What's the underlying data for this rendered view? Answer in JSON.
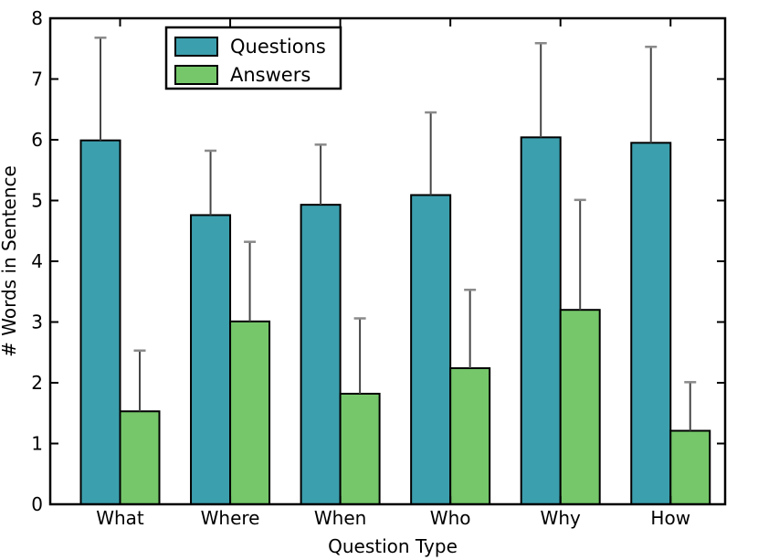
{
  "chart_data": {
    "type": "bar",
    "title": "",
    "xlabel": "Question Type",
    "ylabel": "# Words in Sentence",
    "categories": [
      "What",
      "Where",
      "When",
      "Who",
      "Why",
      "How"
    ],
    "series": [
      {
        "name": "Questions",
        "color": "#3C9FAD",
        "values": [
          5.99,
          4.76,
          4.93,
          5.09,
          6.04,
          5.95
        ],
        "err_upper": [
          1.69,
          1.06,
          0.99,
          1.36,
          1.55,
          1.58
        ]
      },
      {
        "name": "Answers",
        "color": "#75C76A",
        "values": [
          1.53,
          3.01,
          1.82,
          2.24,
          3.2,
          1.21
        ],
        "err_upper": [
          1.0,
          1.31,
          1.24,
          1.29,
          1.81,
          0.8
        ]
      }
    ],
    "ylim": [
      0,
      8
    ],
    "yticks": [
      0,
      1,
      2,
      3,
      4,
      5,
      6,
      7,
      8
    ],
    "legend": {
      "position": "upper left",
      "entries": [
        "Questions",
        "Answers"
      ]
    },
    "grid": false,
    "bar_edge_color": "#000000",
    "error_line_color": "#454545",
    "error_cap_color": "#8a8a8a",
    "spine_color": "#000000",
    "background_color": "#ffffff"
  }
}
